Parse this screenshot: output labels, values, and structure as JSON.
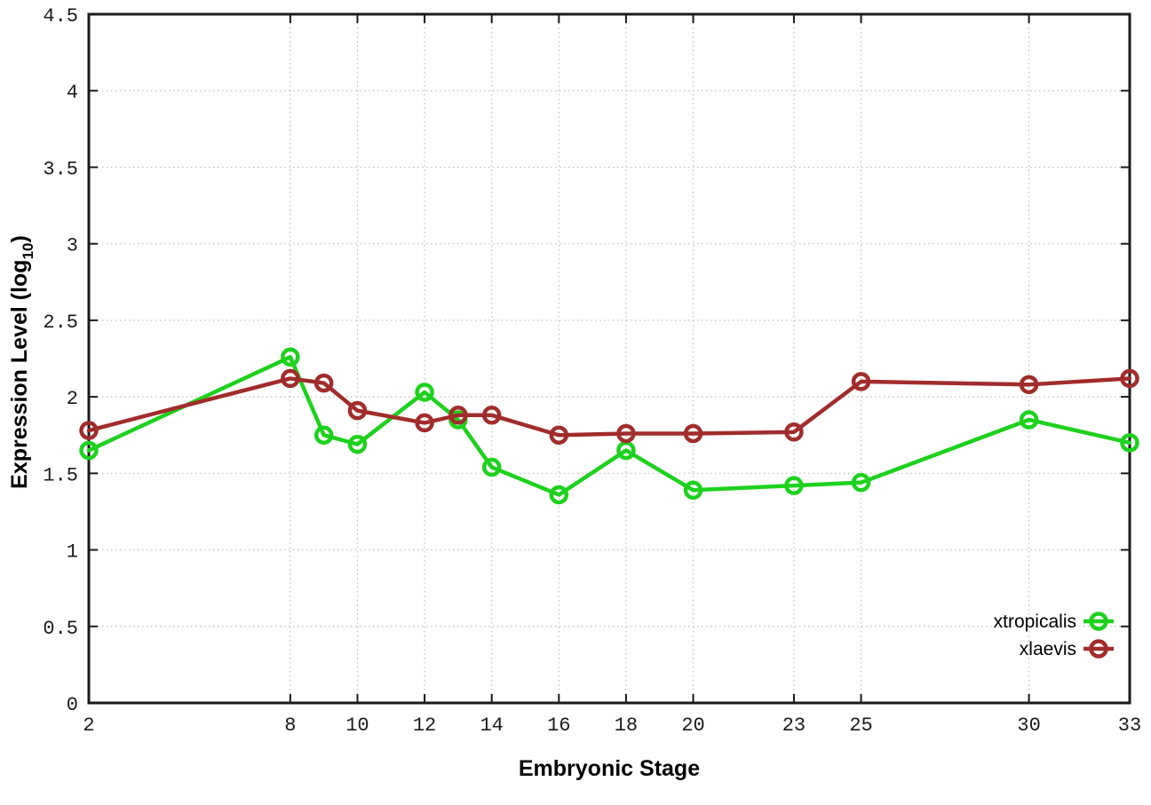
{
  "chart_data": {
    "type": "line",
    "title": "",
    "xlabel": "Embryonic Stage",
    "ylabel": "Expression Level (log10)",
    "ylabel_main": "Expression Level (log",
    "ylabel_sub": "10",
    "ylabel_suffix": ")",
    "x": [
      2,
      8,
      9,
      10,
      12,
      13,
      14,
      16,
      18,
      20,
      23,
      25,
      30,
      33
    ],
    "series": [
      {
        "name": "xtropicalis",
        "color": "#1dd11d",
        "marker": "open-circle",
        "values": [
          1.65,
          2.26,
          1.75,
          1.69,
          2.03,
          1.85,
          1.54,
          1.36,
          1.65,
          1.39,
          1.42,
          1.44,
          1.85,
          1.7
        ]
      },
      {
        "name": "xlaevis",
        "color": "#a12c2c",
        "marker": "open-circle",
        "values": [
          1.78,
          2.12,
          2.09,
          1.91,
          1.83,
          1.88,
          1.88,
          1.75,
          1.76,
          1.76,
          1.77,
          2.1,
          2.08,
          2.12
        ]
      }
    ],
    "x_ticks": [
      2,
      8,
      10,
      12,
      14,
      16,
      18,
      20,
      23,
      25,
      30,
      33
    ],
    "y_ticks": [
      0,
      0.5,
      1,
      1.5,
      2,
      2.5,
      3,
      3.5,
      4,
      4.5
    ],
    "xlim": [
      2,
      33
    ],
    "ylim": [
      0,
      4.5
    ],
    "grid": true,
    "legend_position": "bottom-right",
    "colors": {
      "grid": "#bebebe",
      "axis": "#1a1a1a",
      "background": "#ffffff"
    }
  }
}
